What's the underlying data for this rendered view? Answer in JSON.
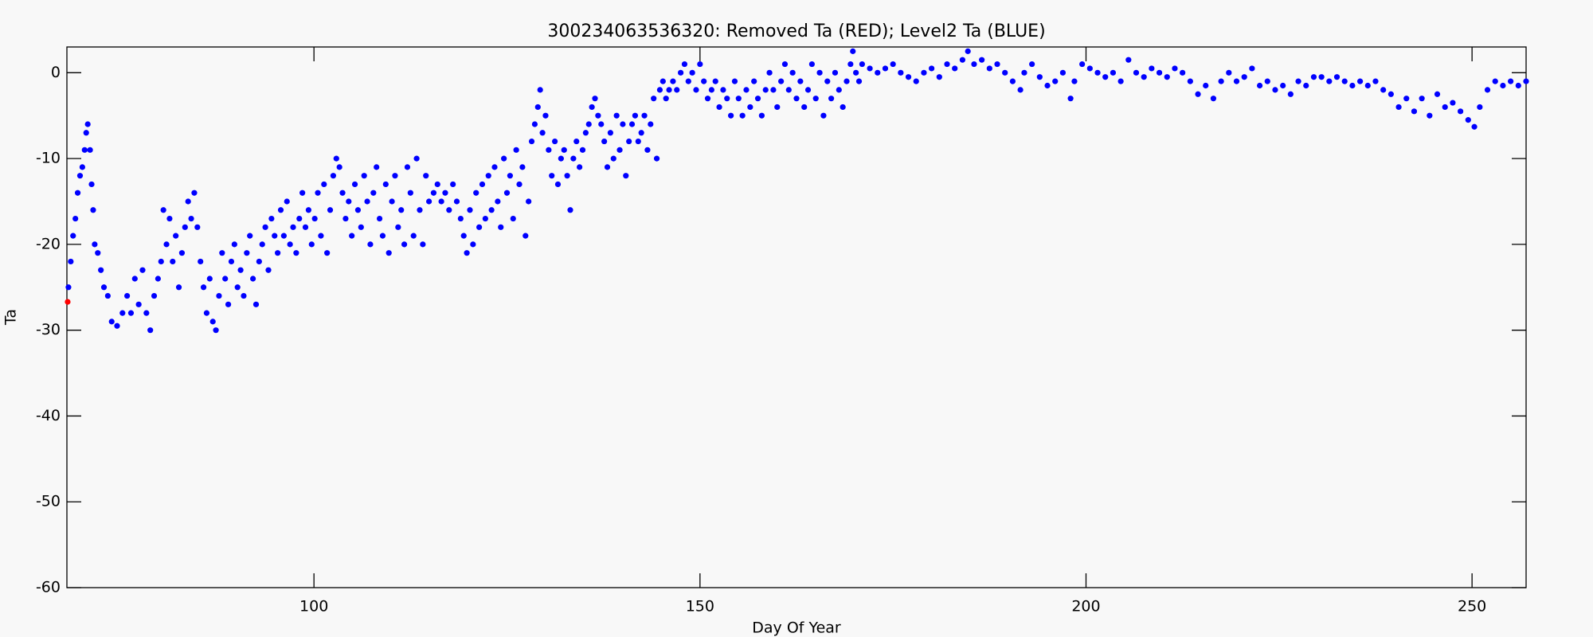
{
  "chart_data": {
    "type": "scatter",
    "title": "300234063536320: Removed Ta (RED); Level2 Ta (BLUE)",
    "x_label": "Day Of Year",
    "y_label": "Ta",
    "xlim": [
      68,
      257
    ],
    "ylim": [
      -60,
      3
    ],
    "xticks": [
      100,
      150,
      200,
      250
    ],
    "yticks": [
      -60,
      -50,
      -40,
      -30,
      -20,
      -10,
      0
    ],
    "grid": false,
    "series": [
      {
        "color": "#ff0000",
        "x": [
          68.1
        ],
        "values": [
          -26.7
        ]
      },
      {
        "color": "#0000ff",
        "x": [
          68.2,
          68.5,
          68.8,
          69.1,
          69.4,
          69.7,
          70.0,
          70.3,
          70.5,
          70.7,
          71.0,
          71.2,
          71.4,
          71.6,
          72.0,
          72.4,
          72.8,
          73.3,
          73.8,
          74.5,
          75.2,
          75.8,
          76.3,
          76.8,
          77.3,
          77.8,
          78.3,
          78.8,
          79.3,
          79.8,
          80.2,
          80.5,
          80.9,
          81.3,
          81.7,
          82.1,
          82.5,
          82.9,
          83.3,
          83.7,
          84.1,
          84.5,
          84.9,
          85.3,
          85.7,
          86.1,
          86.5,
          86.9,
          87.3,
          87.7,
          88.1,
          88.5,
          88.9,
          89.3,
          89.7,
          90.1,
          90.5,
          90.9,
          91.3,
          91.7,
          92.1,
          92.5,
          92.9,
          93.3,
          93.7,
          94.1,
          94.5,
          94.9,
          95.3,
          95.7,
          96.1,
          96.5,
          96.9,
          97.3,
          97.7,
          98.1,
          98.5,
          98.9,
          99.3,
          99.7,
          100.1,
          100.5,
          100.9,
          101.3,
          101.7,
          102.1,
          102.5,
          102.9,
          103.3,
          103.7,
          104.1,
          104.5,
          104.9,
          105.3,
          105.7,
          106.1,
          106.5,
          106.9,
          107.3,
          107.7,
          108.1,
          108.5,
          108.9,
          109.3,
          109.7,
          110.1,
          110.5,
          110.9,
          111.3,
          111.7,
          112.1,
          112.5,
          112.9,
          113.3,
          113.7,
          114.1,
          114.5,
          114.9,
          115.5,
          116.0,
          116.5,
          117.0,
          117.5,
          118.0,
          118.5,
          119.0,
          119.4,
          119.8,
          120.2,
          120.6,
          121.0,
          121.4,
          121.8,
          122.2,
          122.6,
          123.0,
          123.4,
          123.8,
          124.2,
          124.6,
          125.0,
          125.4,
          125.8,
          126.2,
          126.6,
          127.0,
          127.4,
          127.8,
          128.2,
          128.6,
          129.0,
          129.3,
          129.6,
          130.0,
          130.4,
          130.8,
          131.2,
          131.6,
          132.0,
          132.4,
          132.8,
          133.2,
          133.6,
          134.0,
          134.4,
          134.8,
          135.2,
          135.6,
          136.0,
          136.4,
          136.8,
          137.2,
          137.6,
          138.0,
          138.4,
          138.8,
          139.2,
          139.6,
          140.0,
          140.4,
          140.8,
          141.2,
          141.6,
          142.0,
          142.4,
          142.8,
          143.2,
          143.6,
          144.0,
          144.4,
          144.8,
          145.2,
          145.6,
          146.0,
          146.5,
          147.0,
          147.5,
          148.0,
          148.5,
          149.0,
          149.5,
          150.0,
          150.5,
          151.0,
          151.5,
          152.0,
          152.5,
          153.0,
          153.5,
          154.0,
          154.5,
          155.0,
          155.5,
          156.0,
          156.5,
          157.0,
          157.5,
          158.0,
          158.5,
          159.0,
          159.5,
          160.0,
          160.5,
          161.0,
          161.5,
          162.0,
          162.5,
          163.0,
          163.5,
          164.0,
          164.5,
          165.0,
          165.5,
          166.0,
          166.5,
          167.0,
          167.5,
          168.0,
          168.5,
          169.0,
          169.5,
          169.8,
          170.2,
          170.6,
          171.0,
          172,
          173,
          174,
          175,
          176,
          177,
          178,
          179,
          180,
          181,
          182,
          183,
          184,
          184.7,
          185.5,
          186.5,
          187.5,
          188.5,
          189.5,
          190.5,
          191.5,
          192,
          193,
          194,
          195,
          196,
          197,
          198,
          198.5,
          199.5,
          200.5,
          201.5,
          202.5,
          203.5,
          204.5,
          205.5,
          206.5,
          207.5,
          208.5,
          209.5,
          210.5,
          211.5,
          212.5,
          213.5,
          214.5,
          215.5,
          216.5,
          217.5,
          218.5,
          219.5,
          220.5,
          221.5,
          222.5,
          223.5,
          224.5,
          225.5,
          226.5,
          227.5,
          228.5,
          229.5,
          230.5,
          231.5,
          232.5,
          233.5,
          234.5,
          235.5,
          236.5,
          237.5,
          238.5,
          239.5,
          240.5,
          241.5,
          242.5,
          243.5,
          244.5,
          245.5,
          246.5,
          247.5,
          248.5,
          249.5,
          250.3,
          251,
          252,
          253,
          254,
          255,
          256,
          257
        ],
        "values": [
          -25,
          -22,
          -19,
          -17,
          -14,
          -12,
          -11,
          -9,
          -7,
          -6,
          -9,
          -13,
          -16,
          -20,
          -21,
          -23,
          -25,
          -26,
          -29,
          -29.5,
          -28,
          -26,
          -28,
          -24,
          -27,
          -23,
          -28,
          -30,
          -26,
          -24,
          -22,
          -16,
          -20,
          -17,
          -22,
          -19,
          -25,
          -21,
          -18,
          -15,
          -17,
          -14,
          -18,
          -22,
          -25,
          -28,
          -24,
          -29,
          -30,
          -26,
          -21,
          -24,
          -27,
          -22,
          -20,
          -25,
          -23,
          -26,
          -21,
          -19,
          -24,
          -27,
          -22,
          -20,
          -18,
          -23,
          -17,
          -19,
          -21,
          -16,
          -19,
          -15,
          -20,
          -18,
          -21,
          -17,
          -14,
          -18,
          -16,
          -20,
          -17,
          -14,
          -19,
          -13,
          -21,
          -16,
          -12,
          -10,
          -11,
          -14,
          -17,
          -15,
          -19,
          -13,
          -16,
          -18,
          -12,
          -15,
          -20,
          -14,
          -11,
          -17,
          -19,
          -13,
          -21,
          -15,
          -12,
          -18,
          -16,
          -20,
          -11,
          -14,
          -19,
          -10,
          -16,
          -20,
          -12,
          -15,
          -14,
          -13,
          -15,
          -14,
          -16,
          -13,
          -15,
          -17,
          -19,
          -21,
          -16,
          -20,
          -14,
          -18,
          -13,
          -17,
          -12,
          -16,
          -11,
          -15,
          -18,
          -10,
          -14,
          -12,
          -17,
          -9,
          -13,
          -11,
          -19,
          -15,
          -8,
          -6,
          -4,
          -2,
          -7,
          -5,
          -9,
          -12,
          -8,
          -13,
          -10,
          -9,
          -12,
          -16,
          -10,
          -8,
          -11,
          -9,
          -7,
          -6,
          -4,
          -3,
          -5,
          -6,
          -8,
          -11,
          -7,
          -10,
          -5,
          -9,
          -6,
          -12,
          -8,
          -6,
          -5,
          -8,
          -7,
          -5,
          -9,
          -6,
          -3,
          -10,
          -2,
          -1,
          -3,
          -2,
          -1,
          -2,
          0,
          1,
          -1,
          0,
          -2,
          1,
          -1,
          -3,
          -2,
          -1,
          -4,
          -2,
          -3,
          -5,
          -1,
          -3,
          -5,
          -2,
          -4,
          -1,
          -3,
          -5,
          -2,
          0,
          -2,
          -4,
          -1,
          1,
          -2,
          0,
          -3,
          -1,
          -4,
          -2,
          1,
          -3,
          0,
          -5,
          -1,
          -3,
          0,
          -2,
          -4,
          -1,
          1,
          2.5,
          0,
          -1,
          1,
          0.5,
          0,
          0.5,
          1,
          0,
          -0.5,
          -1,
          0,
          0.5,
          -0.5,
          1,
          0.5,
          1.5,
          2.5,
          1,
          1.5,
          0.5,
          1,
          0,
          -1,
          -2,
          0,
          1,
          -0.5,
          -1.5,
          -1,
          0,
          -3,
          -1,
          1,
          0.5,
          0,
          -0.5,
          0,
          -1,
          1.5,
          0,
          -0.5,
          0.5,
          0,
          -0.5,
          0.5,
          0,
          -1,
          -2.5,
          -1.5,
          -3,
          -1,
          0,
          -1,
          -0.5,
          0.5,
          -1.5,
          -1,
          -2,
          -1.5,
          -2.5,
          -1,
          -1.5,
          -0.5,
          -0.5,
          -1,
          -0.5,
          -1,
          -1.5,
          -1,
          -1.5,
          -1,
          -2,
          -2.5,
          -4,
          -3,
          -4.5,
          -3,
          -5,
          -2.5,
          -4,
          -3.5,
          -4.5,
          -5.5,
          -6.3,
          -4,
          -2,
          -1,
          -1.5,
          -1,
          -1.5,
          -1
        ]
      }
    ]
  }
}
